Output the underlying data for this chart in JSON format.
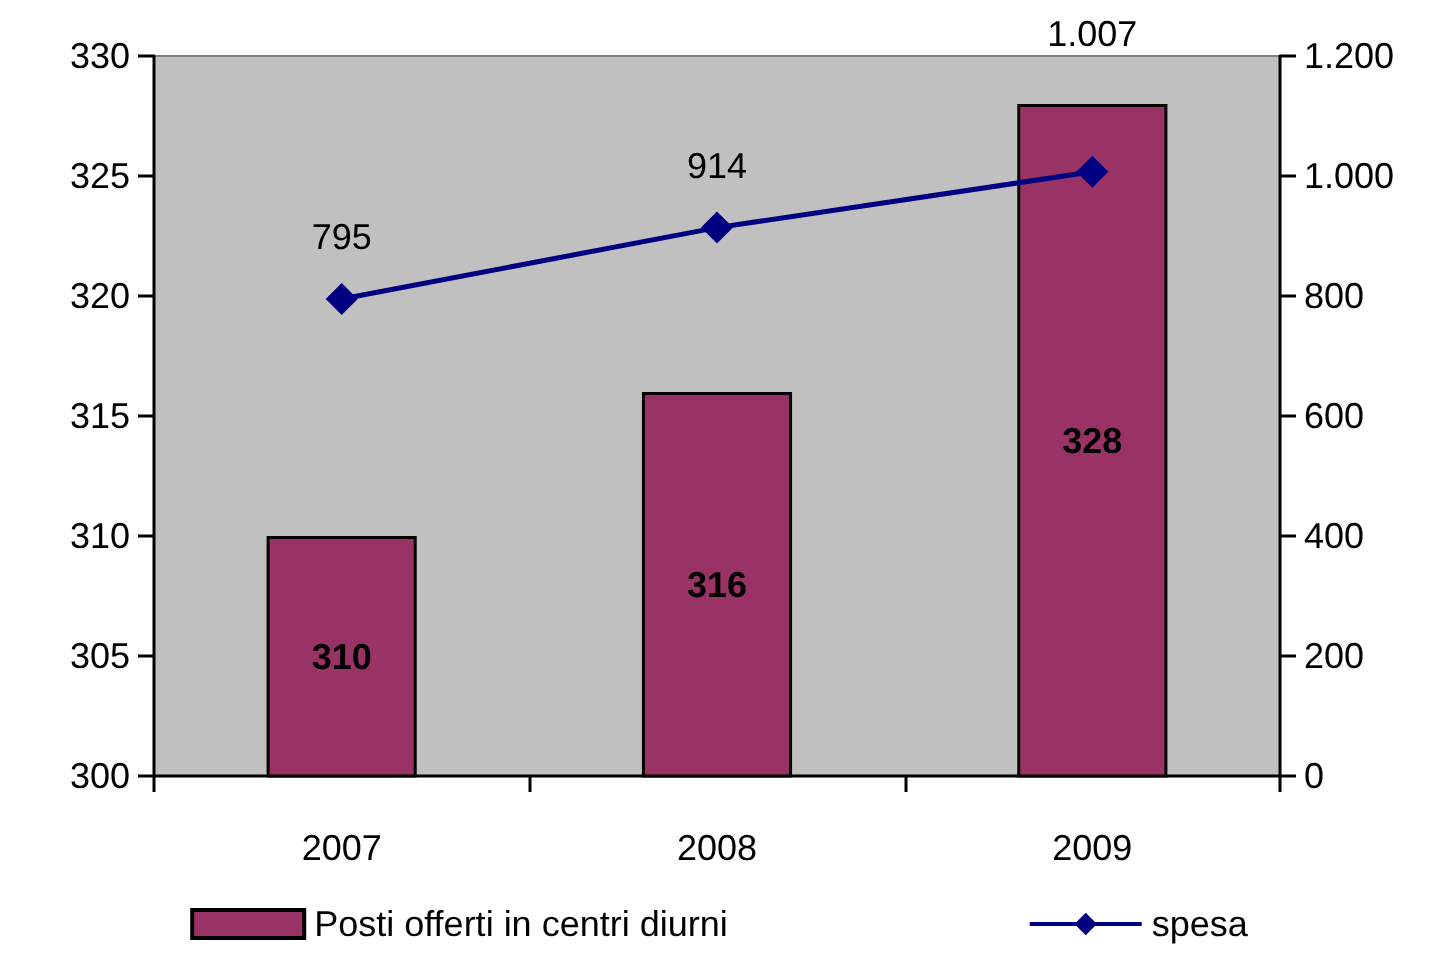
{
  "chart_data": {
    "type": "bar",
    "categories": [
      "2007",
      "2008",
      "2009"
    ],
    "series": [
      {
        "name": "Posti offerti in centri diurni",
        "color": "#993366",
        "values": [
          310,
          316,
          328
        ],
        "value_labels": [
          "310",
          "316",
          "328"
        ]
      },
      {
        "name": "spesa",
        "type": "line",
        "axis": "y2",
        "color": "#000080",
        "marker": "diamond",
        "values": [
          795,
          914,
          1007
        ],
        "value_labels": [
          "795",
          "914",
          "1.007"
        ]
      }
    ],
    "ylim": [
      300,
      330
    ],
    "yticks": [
      300,
      305,
      310,
      315,
      320,
      325,
      330
    ],
    "y2lim": [
      0,
      1200
    ],
    "y2ticks": [
      0,
      200,
      400,
      600,
      800,
      {
        "value": 1000,
        "label": "1.000"
      },
      {
        "value": 1200,
        "label": "1.200"
      }
    ],
    "grid": false,
    "legend": "bottom"
  }
}
